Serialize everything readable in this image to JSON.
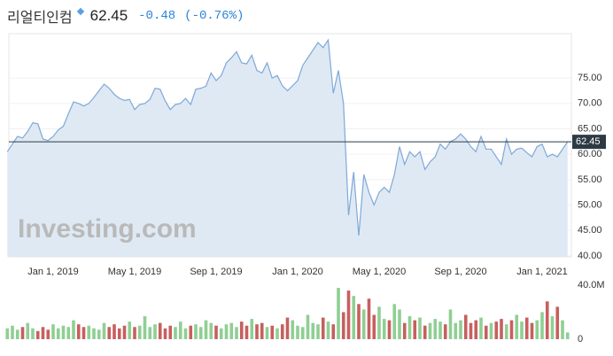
{
  "header": {
    "name": "리얼티인컴",
    "price": "62.45",
    "change": "-0.48",
    "change_pct": "(-0.76%)"
  },
  "watermark": "Investing.com",
  "chart_data": [
    {
      "type": "line",
      "categories": [
        null,
        null,
        null,
        null,
        null,
        null,
        null,
        null,
        null,
        "Jan 1, 2019",
        null,
        null,
        null,
        null,
        null,
        null,
        null,
        null,
        null,
        null,
        null,
        null,
        null,
        null,
        null,
        "May 1, 2019",
        null,
        null,
        null,
        null,
        null,
        null,
        null,
        null,
        null,
        null,
        null,
        null,
        null,
        null,
        null,
        "Sep 1, 2019",
        null,
        null,
        null,
        null,
        null,
        null,
        null,
        null,
        null,
        null,
        null,
        null,
        null,
        null,
        null,
        "Jan 1, 2020",
        null,
        null,
        null,
        null,
        null,
        null,
        null,
        null,
        null,
        null,
        null,
        null,
        null,
        null,
        null,
        "May 1, 2020",
        null,
        null,
        null,
        null,
        null,
        null,
        null,
        null,
        null,
        null,
        null,
        null,
        null,
        null,
        null,
        "Sep 1, 2020",
        null,
        null,
        null,
        null,
        null,
        null,
        null,
        null,
        null,
        null,
        null,
        null,
        null,
        null,
        null,
        "Jan 1, 2021",
        null,
        null,
        null,
        null,
        null
      ],
      "series": [
        {
          "color": "#7ea8d8",
          "fill": "#dfe9f4",
          "values": [
            60.5,
            62,
            63.5,
            63.2,
            64.5,
            66.2,
            66,
            63,
            62.7,
            63.5,
            64.8,
            65.5,
            68,
            70.3,
            70,
            69.5,
            70,
            71.2,
            72.5,
            73.8,
            73,
            71.8,
            71,
            70.6,
            70.8,
            68.8,
            69.8,
            70,
            70.8,
            73,
            72.8,
            70.5,
            68.8,
            69.8,
            70,
            71,
            69.8,
            72.8,
            73,
            73.4,
            76,
            74.5,
            75.5,
            78,
            79,
            80.2,
            78,
            77.8,
            79.5,
            76.5,
            76,
            78,
            75,
            75.5,
            73.5,
            72.5,
            73.5,
            74.5,
            77.5,
            79,
            80.5,
            82,
            81,
            82.5,
            72,
            76.5,
            70,
            48,
            56.5,
            44,
            56,
            52.5,
            50,
            52.5,
            53.5,
            52.5,
            56,
            61.5,
            58,
            60.5,
            59.5,
            60.5,
            57,
            58.5,
            59.5,
            62,
            61,
            62.5,
            63,
            64,
            63,
            61.5,
            60.5,
            63.5,
            61,
            61,
            59.5,
            58,
            63,
            60,
            61,
            61.2,
            60.3,
            59.5,
            61.5,
            62,
            59.5,
            60,
            59.5,
            61,
            62.45
          ]
        }
      ],
      "ylim": [
        39.8,
        83.4
      ],
      "yticks": [
        {
          "value": 40,
          "label": "40.00"
        },
        {
          "value": 45,
          "label": "45.00"
        },
        {
          "value": 50,
          "label": "50.00"
        },
        {
          "value": 55,
          "label": "55.00"
        },
        {
          "value": 60,
          "label": "60.00"
        },
        {
          "value": 65,
          "label": "65.00"
        },
        {
          "value": 70,
          "label": "70.00"
        },
        {
          "value": 75,
          "label": "75.00"
        }
      ],
      "price_line": {
        "value": 62.45,
        "label": "62.45"
      },
      "grid": true
    },
    {
      "type": "bar",
      "values": [
        8,
        10,
        7,
        9,
        12,
        8,
        6,
        9,
        7,
        11,
        8,
        10,
        9,
        14,
        11,
        9,
        10,
        8,
        7,
        12,
        9,
        11,
        8,
        10,
        13,
        9,
        10,
        17,
        9,
        11,
        12,
        8,
        10,
        9,
        13,
        8,
        10,
        11,
        9,
        14,
        12,
        10,
        8,
        11,
        12,
        9,
        13,
        10,
        15,
        11,
        12,
        9,
        10,
        8,
        11,
        16,
        14,
        10,
        9,
        18,
        12,
        11,
        16,
        13,
        11,
        38,
        20,
        36,
        32,
        26,
        22,
        30,
        18,
        24,
        15,
        14,
        26,
        22,
        12,
        17,
        14,
        16,
        10,
        12,
        15,
        13,
        11,
        22,
        12,
        14,
        18,
        12,
        14,
        16,
        10,
        12,
        13,
        15,
        11,
        14,
        18,
        13,
        16,
        12,
        14,
        20,
        28,
        17,
        24,
        14,
        5
      ],
      "up_color": "#8fcf93",
      "down_color": "#c75f5f",
      "ylim": [
        0,
        40
      ],
      "yticks": [
        0,
        {
          "value": 40,
          "label": "40.0M"
        }
      ]
    }
  ]
}
